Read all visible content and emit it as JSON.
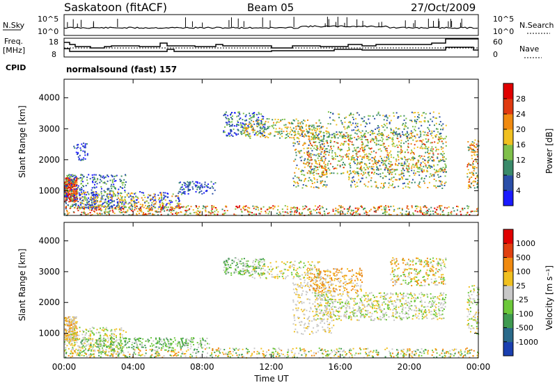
{
  "header": {
    "station": "Saskatoon (fitACF)",
    "beam": "Beam 05",
    "date": "27/Oct/2009"
  },
  "noise_panel": {
    "left_label": "N.Sky",
    "left_ticks": [
      "10^5",
      "10^0"
    ],
    "right_label": "N.Search",
    "right_ticks": [
      "10^5",
      "10^0"
    ]
  },
  "freq_panel": {
    "left_label_1": "Freq.",
    "left_label_2": "[MHz]",
    "left_ticks": [
      "18",
      "8"
    ],
    "right_label": "Nave",
    "right_ticks": [
      "60",
      "0"
    ]
  },
  "cpid": {
    "label": "CPID",
    "value": "normalsound (fast) 157"
  },
  "chart_data": [
    {
      "type": "heatmap",
      "name": "Power",
      "ylabel": "Slant Range [km]",
      "yticks": [
        "1000",
        "2000",
        "3000",
        "4000"
      ],
      "ylim": [
        200,
        4600
      ],
      "colorbar_label": "Power [dB]",
      "colorbar_ticks": [
        "4",
        "8",
        "12",
        "16",
        "20",
        "24",
        "28"
      ],
      "colorbar_range": [
        0,
        32
      ],
      "colors": [
        "#1a1aff",
        "#2a4ea8",
        "#3a8a6a",
        "#7fc04a",
        "#f0c020",
        "#f08a10",
        "#e03a10",
        "#e00000"
      ]
    },
    {
      "type": "heatmap",
      "name": "Velocity",
      "ylabel": "Slant Range [km]",
      "yticks": [
        "1000",
        "2000",
        "3000",
        "4000"
      ],
      "ylim": [
        200,
        4600
      ],
      "colorbar_label": "Velocity [m s⁻¹]",
      "colorbar_ticks": [
        "1000",
        "500",
        "100",
        "25",
        "-25",
        "-100",
        "-500",
        "-1000"
      ],
      "colors": [
        "#1a3fb0",
        "#2a6a8a",
        "#3f9a50",
        "#6cc83a",
        "#c8c8c8",
        "#f0c020",
        "#f08a10",
        "#e04010",
        "#e00000"
      ]
    }
  ],
  "x_axis": {
    "ticks": [
      "00:00",
      "04:00",
      "08:00",
      "12:00",
      "16:00",
      "20:00",
      "00:00"
    ],
    "label": "Time UT"
  }
}
